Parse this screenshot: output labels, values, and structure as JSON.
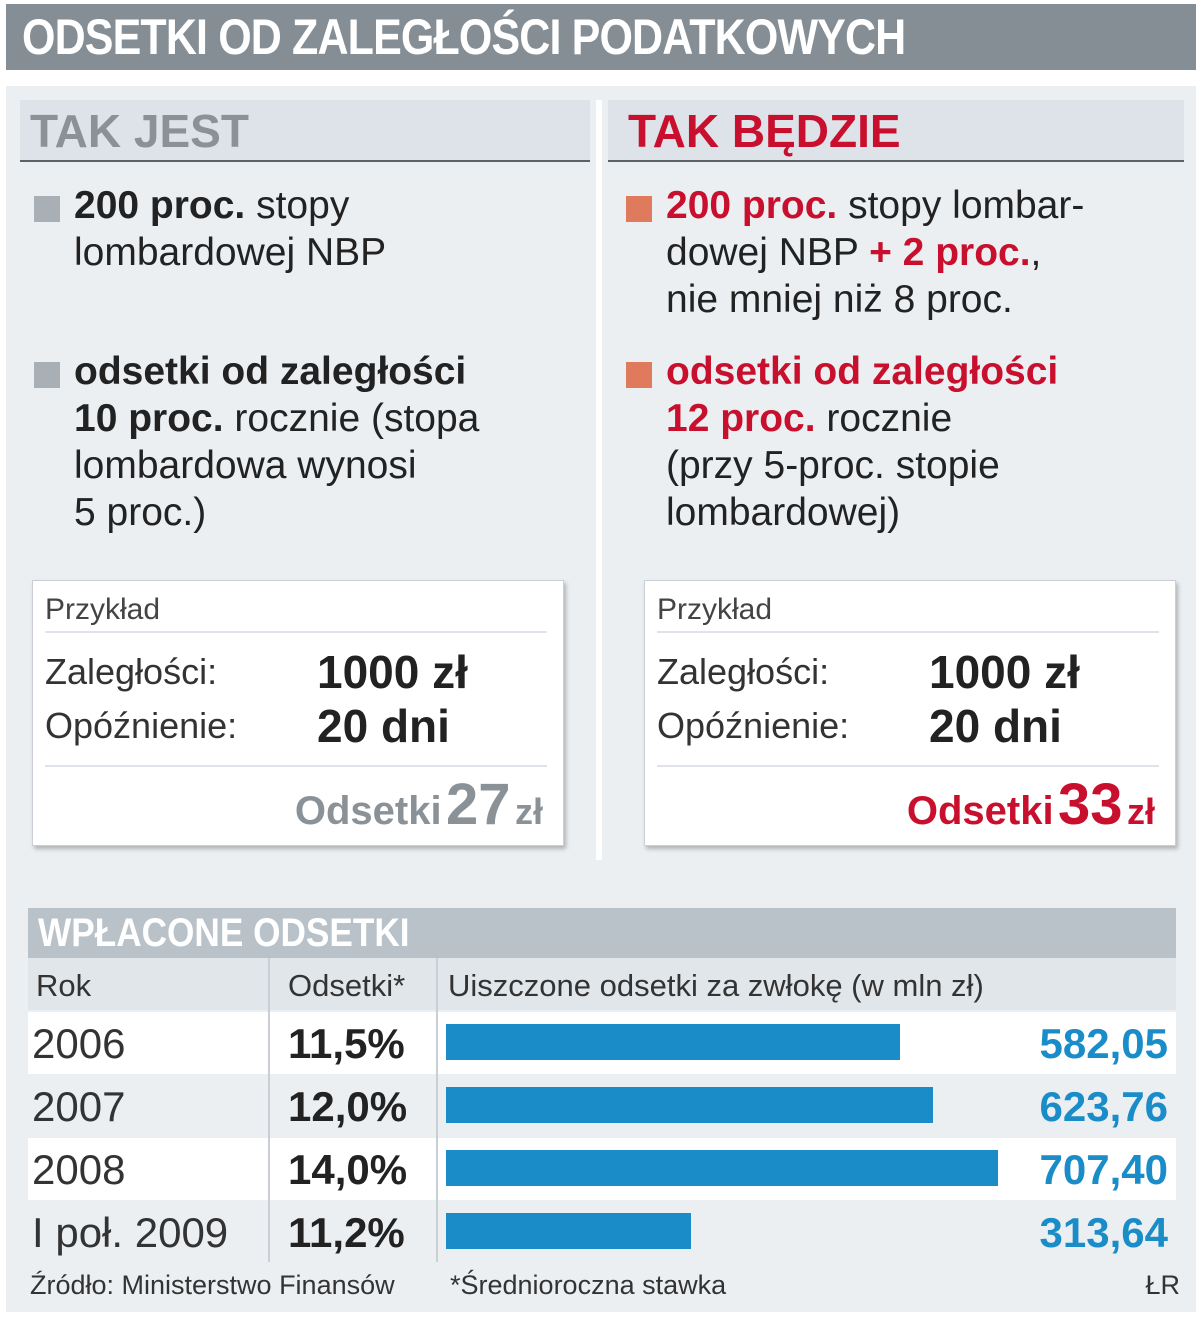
{
  "title": "ODSETKI OD ZALEGŁOŚCI PODATKOWYCH",
  "left": {
    "heading": "TAK JEST",
    "b1_bold": "200 proc.",
    "b1_rest1": " stopy",
    "b1_line2": "lombardowej NBP",
    "b2_line1": "odsetki od zaległości",
    "b2_bold": "10 proc.",
    "b2_rest": " rocznie (stopa",
    "b2_line3": "lombardowa wynosi",
    "b2_line4": "5 proc.)",
    "example": {
      "label": "Przykład",
      "k1": "Zaległości:",
      "v1": "1000 zł",
      "k2": "Opóźnienie:",
      "v2": "20 dni",
      "result_word": "Odsetki",
      "result_num": "27",
      "result_unit": "zł"
    }
  },
  "right": {
    "heading": "TAK BĘDZIE",
    "b1_bold": "200 proc.",
    "b1_rest1": " stopy lombar-",
    "b1_line2a": "dowej NBP ",
    "b1_line2b": "+ 2 proc.",
    "b1_line2c": ",",
    "b1_line3": "nie mniej niż 8 proc.",
    "b2_line1": "odsetki od zaległości",
    "b2_bold": "12 proc.",
    "b2_rest": " rocznie",
    "b2_line3": "(przy 5-proc. stopie",
    "b2_line4": "lombardowej)",
    "example": {
      "label": "Przykład",
      "k1": "Zaległości:",
      "v1": "1000 zł",
      "k2": "Opóźnienie:",
      "v2": "20 dni",
      "result_word": "Odsetki",
      "result_num": "33",
      "result_unit": "zł"
    }
  },
  "table": {
    "heading": "WPŁACONE ODSETKI",
    "col_year": "Rok",
    "col_rate": "Odsetki*",
    "col_paid": "Uiszczone odsetki za zwłokę (w mln zł)",
    "source": "Źródło: Ministerstwo Finansów",
    "note": "*Średnioroczna stawka",
    "credit": "ŁR"
  },
  "colors": {
    "title_bar": "#858e95",
    "bar": "#1a8cc8",
    "red": "#c8102e",
    "grey_text": "#8a9298",
    "orange_bullet": "#e07a5c",
    "grey_bullet": "#a8b0b6"
  },
  "chart_data": {
    "type": "bar",
    "title": "WPŁACONE ODSETKI",
    "xlabel": "Rok",
    "ylabel": "Uiszczone odsetki za zwłokę (w mln zł)",
    "categories": [
      "2006",
      "2007",
      "2008",
      "I poł. 2009"
    ],
    "rates": [
      "11,5%",
      "12,0%",
      "14,0%",
      "11,2%"
    ],
    "values": [
      582.05,
      623.76,
      707.4,
      313.64
    ],
    "value_labels": [
      "582,05",
      "623,76",
      "707,40",
      "313,64"
    ],
    "orientation": "horizontal"
  }
}
